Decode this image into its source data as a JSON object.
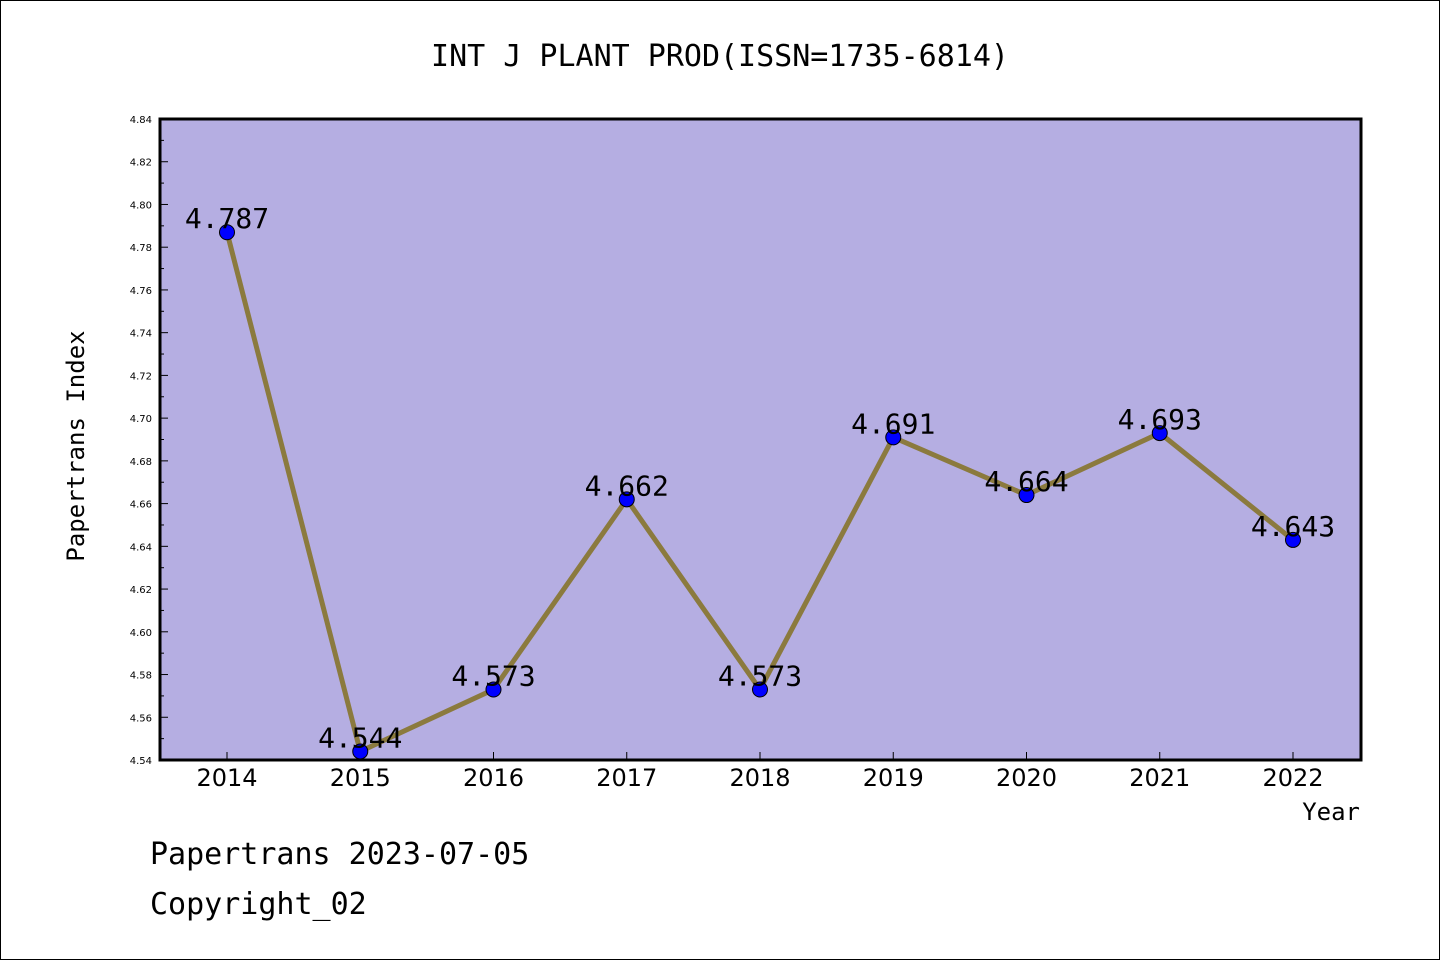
{
  "chart_data": {
    "type": "line",
    "title": "INT J PLANT PROD(ISSN=1735-6814)",
    "xlabel": "Year",
    "ylabel": "Papertrans Index",
    "categories": [
      "2014",
      "2015",
      "2016",
      "2017",
      "2018",
      "2019",
      "2020",
      "2021",
      "2022"
    ],
    "values": [
      4.787,
      4.544,
      4.573,
      4.662,
      4.573,
      4.691,
      4.664,
      4.693,
      4.643
    ],
    "value_labels": [
      "4.787",
      "4.544",
      "4.573",
      "4.662",
      "4.573",
      "4.691",
      "4.664",
      "4.693",
      "4.643"
    ],
    "ylim": [
      4.54,
      4.84
    ],
    "yticks": [
      "4.54",
      "4.56",
      "4.58",
      "4.60",
      "4.62",
      "4.64",
      "4.66",
      "4.68",
      "4.70",
      "4.72",
      "4.74",
      "4.76",
      "4.78",
      "4.80",
      "4.82",
      "4.84"
    ],
    "grid": false,
    "colors": {
      "plot_background": "#b5aee2",
      "line": "#8b7a3e",
      "marker": "#0000ff"
    }
  },
  "footer": {
    "source": "Papertrans 2023-07-05",
    "copyright": "Copyright_02"
  }
}
